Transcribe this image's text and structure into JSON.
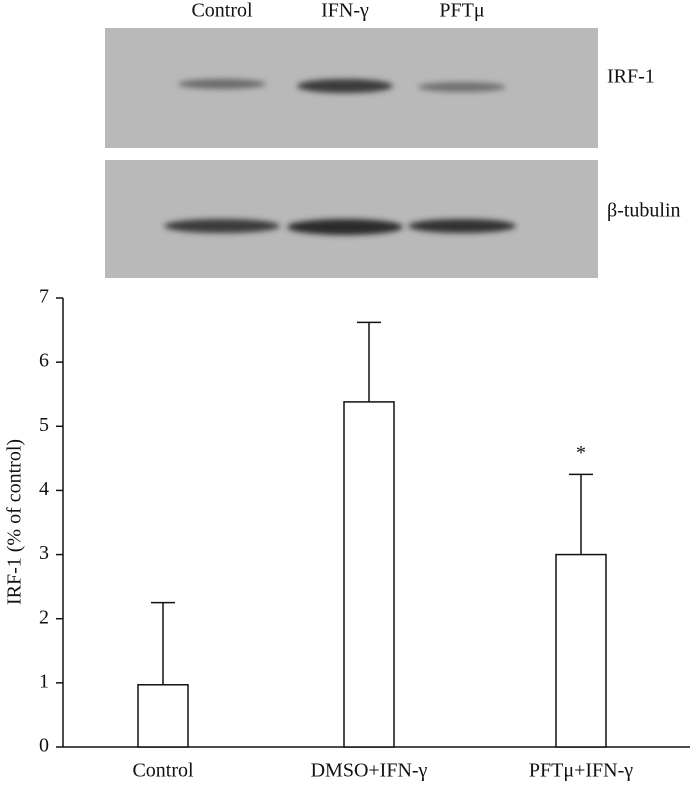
{
  "blot": {
    "lanes": [
      "Control",
      "IFN-γ",
      "PFTμ"
    ],
    "rows": [
      "IRF-1",
      "β-tubulin"
    ]
  },
  "chart_data": {
    "type": "bar",
    "y_label": "IRF-1 (% of control)",
    "categories": [
      "Control",
      "DMSO+IFN-γ",
      "PFTμ+IFN-γ"
    ],
    "values": [
      0.97,
      5.38,
      3.0
    ],
    "errors": [
      1.28,
      1.24,
      1.25
    ],
    "annotation": "*",
    "color": "#ffffff",
    "ylim": [
      0,
      7
    ],
    "yticks": [
      0,
      1,
      2,
      3,
      4,
      5,
      6,
      7
    ]
  }
}
